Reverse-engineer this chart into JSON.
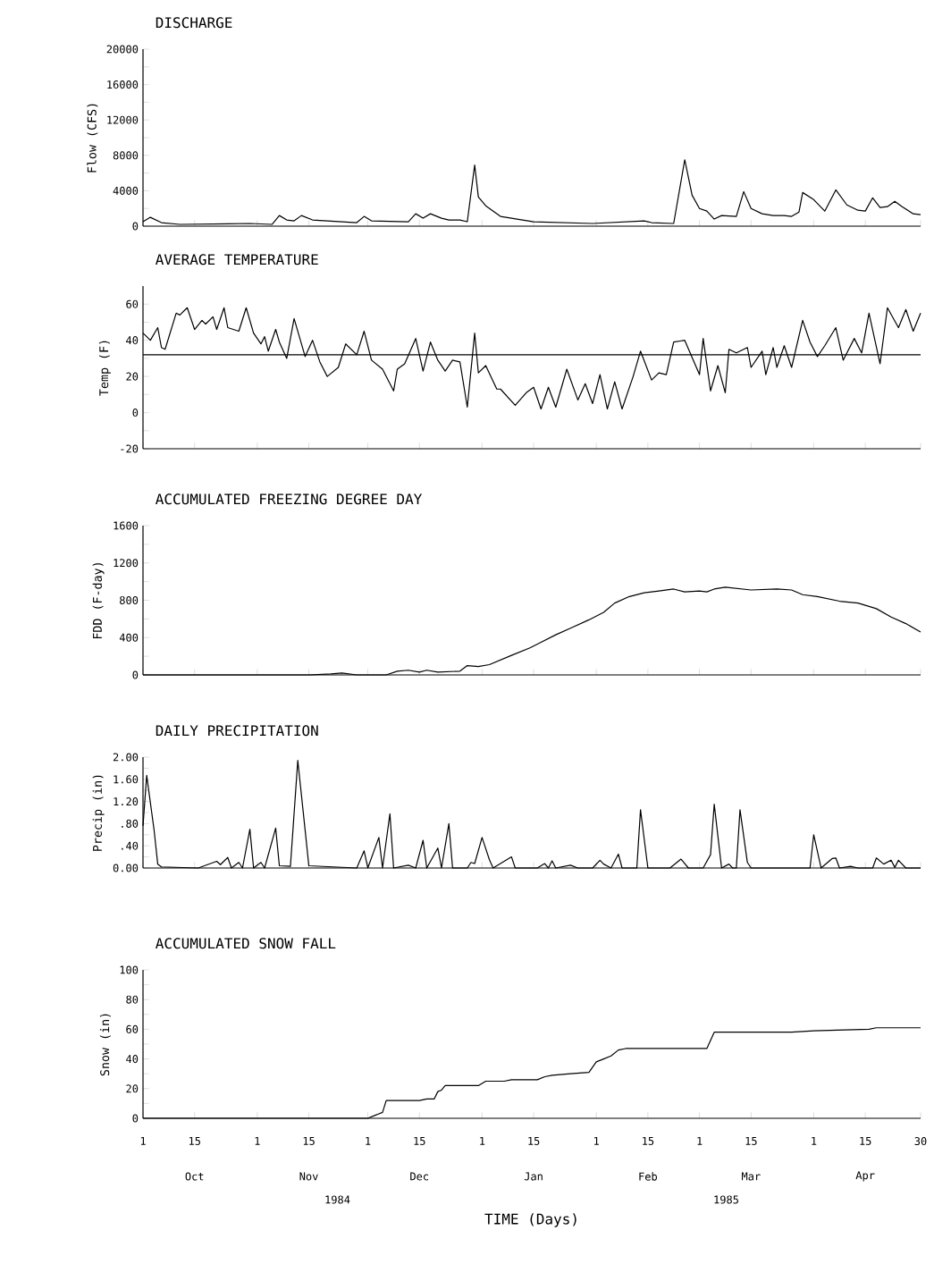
{
  "chart_data": [
    {
      "type": "line",
      "title": "DISCHARGE",
      "ylabel": "Flow (CFS)",
      "color": "#000000",
      "x": [
        "1984-10-01",
        "1984-10-03",
        "1984-10-06",
        "1984-10-11",
        "1984-10-30",
        "1984-11-05",
        "1984-11-07",
        "1984-11-09",
        "1984-11-11",
        "1984-11-13",
        "1984-11-16",
        "1984-11-28",
        "1984-11-30",
        "1984-12-02",
        "1984-12-12",
        "1984-12-14",
        "1984-12-16",
        "1984-12-18",
        "1984-12-21",
        "1984-12-23",
        "1984-12-26",
        "1984-12-28",
        "1984-12-30",
        "1984-12-31",
        "1985-01-02",
        "1985-01-06",
        "1985-01-15",
        "1985-01-31",
        "1985-02-14",
        "1985-02-16",
        "1985-02-22",
        "1985-02-25",
        "1985-02-27",
        "1985-03-01",
        "1985-03-03",
        "1985-03-05",
        "1985-03-07",
        "1985-03-11",
        "1985-03-13",
        "1985-03-15",
        "1985-03-18",
        "1985-03-21",
        "1985-03-24",
        "1985-03-26",
        "1985-03-28",
        "1985-03-29",
        "1985-04-01",
        "1985-04-04",
        "1985-04-07",
        "1985-04-10",
        "1985-04-13",
        "1985-04-15",
        "1985-04-17",
        "1985-04-19",
        "1985-04-21",
        "1985-04-23",
        "1985-04-25",
        "1985-04-28",
        "1985-04-30"
      ],
      "values": [
        500,
        1000,
        400,
        200,
        300,
        200,
        1200,
        700,
        600,
        1200,
        700,
        400,
        1100,
        600,
        500,
        1400,
        900,
        1400,
        900,
        700,
        700,
        500,
        6900,
        3300,
        2300,
        1100,
        500,
        300,
        600,
        400,
        300,
        7500,
        3500,
        2000,
        1700,
        800,
        1200,
        1100,
        3900,
        2000,
        1400,
        1200,
        1200,
        1100,
        1600,
        3800,
        3000,
        1700,
        4100,
        2400,
        1800,
        1700,
        3200,
        2100,
        2200,
        2800,
        2200,
        1400,
        1300
      ],
      "xlim": [
        "1984-10-01",
        "1985-04-30"
      ],
      "ylim": [
        0,
        20000
      ],
      "xticks": [
        {
          "value": "1984-10-01",
          "label": null
        },
        {
          "value": "1984-10-15",
          "label": null
        },
        {
          "value": "1984-11-01",
          "label": null
        },
        {
          "value": "1984-11-15",
          "label": null
        },
        {
          "value": "1984-12-01",
          "label": null
        },
        {
          "value": "1984-12-15",
          "label": null
        },
        {
          "value": "1985-01-01",
          "label": null
        },
        {
          "value": "1985-01-15",
          "label": null
        },
        {
          "value": "1985-02-01",
          "label": null
        },
        {
          "value": "1985-02-15",
          "label": null
        },
        {
          "value": "1985-03-01",
          "label": null
        },
        {
          "value": "1985-03-15",
          "label": null
        },
        {
          "value": "1985-04-01",
          "label": null
        },
        {
          "value": "1985-04-15",
          "label": null
        },
        {
          "value": "1985-04-30",
          "label": null
        }
      ],
      "yticks": [
        0,
        {
          "value": 2000,
          "label": null
        },
        4000,
        {
          "value": 6000,
          "label": null
        },
        8000,
        {
          "value": 10000,
          "label": null
        },
        12000,
        {
          "value": 14000,
          "label": null
        },
        16000,
        {
          "value": 18000,
          "label": null
        },
        20000
      ],
      "tick_labels": "y"
    },
    {
      "type": "line",
      "title": "AVERAGE TEMPERATURE",
      "ylabel": "Temp (F)",
      "color": "#000000",
      "x": [
        "1984-10-01",
        "1984-10-03",
        "1984-10-05",
        "1984-10-06",
        "1984-10-07",
        "1984-10-10",
        "1984-10-11",
        "1984-10-13",
        "1984-10-15",
        "1984-10-17",
        "1984-10-18",
        "1984-10-20",
        "1984-10-21",
        "1984-10-23",
        "1984-10-24",
        "1984-10-27",
        "1984-10-29",
        "1984-10-31",
        "1984-11-02",
        "1984-11-03",
        "1984-11-04",
        "1984-11-06",
        "1984-11-07",
        "1984-11-09",
        "1984-11-11",
        "1984-11-14",
        "1984-11-16",
        "1984-11-18",
        "1984-11-20",
        "1984-11-23",
        "1984-11-25",
        "1984-11-28",
        "1984-11-30",
        "1984-12-02",
        "1984-12-05",
        "1984-12-08",
        "1984-12-09",
        "1984-12-11",
        "1984-12-14",
        "1984-12-16",
        "1984-12-18",
        "1984-12-20",
        "1984-12-22",
        "1984-12-24",
        "1984-12-26",
        "1984-12-28",
        "1984-12-30",
        "1984-12-31",
        "1985-01-02",
        "1985-01-05",
        "1985-01-06",
        "1985-01-10",
        "1985-01-13",
        "1985-01-15",
        "1985-01-17",
        "1985-01-19",
        "1985-01-21",
        "1985-01-24",
        "1985-01-27",
        "1985-01-29",
        "1985-01-31",
        "1985-02-02",
        "1985-02-04",
        "1985-02-06",
        "1985-02-08",
        "1985-02-11",
        "1985-02-13",
        "1985-02-16",
        "1985-02-18",
        "1985-02-20",
        "1985-02-22",
        "1985-02-25",
        "1985-03-01",
        "1985-03-02",
        "1985-03-04",
        "1985-03-06",
        "1985-03-08",
        "1985-03-09",
        "1985-03-11",
        "1985-03-14",
        "1985-03-15",
        "1985-03-18",
        "1985-03-19",
        "1985-03-21",
        "1985-03-22",
        "1985-03-24",
        "1985-03-26",
        "1985-03-29",
        "1985-03-31",
        "1985-04-02",
        "1985-04-04",
        "1985-04-07",
        "1985-04-09",
        "1985-04-12",
        "1985-04-14",
        "1985-04-16",
        "1985-04-19",
        "1985-04-21",
        "1985-04-24",
        "1985-04-26",
        "1985-04-28",
        "1985-04-30"
      ],
      "values": [
        44,
        40,
        47,
        36,
        35,
        55,
        54,
        58,
        46,
        51,
        49,
        53,
        46,
        58,
        47,
        45,
        58,
        44,
        38,
        42,
        34,
        46,
        39,
        30,
        52,
        31,
        40,
        28,
        20,
        25,
        38,
        32,
        45,
        29,
        24,
        12,
        24,
        27,
        41,
        23,
        39,
        29,
        23,
        29,
        28,
        3,
        44,
        22,
        26,
        13,
        13,
        4,
        11,
        14,
        2,
        14,
        3,
        24,
        7,
        16,
        5,
        21,
        2,
        17,
        2,
        20,
        34,
        18,
        22,
        21,
        39,
        40,
        21,
        41,
        12,
        26,
        11,
        35,
        33,
        36,
        25,
        34,
        21,
        36,
        25,
        37,
        25,
        51,
        39,
        31,
        37,
        47,
        29,
        41,
        33,
        55,
        27,
        58,
        47,
        57,
        45,
        55
      ],
      "xlim": [
        "1984-10-01",
        "1985-04-30"
      ],
      "ylim": [
        -20,
        70
      ],
      "xticks": [
        {
          "value": "1984-10-01",
          "label": null
        },
        {
          "value": "1984-10-15",
          "label": null
        },
        {
          "value": "1984-11-01",
          "label": null
        },
        {
          "value": "1984-11-15",
          "label": null
        },
        {
          "value": "1984-12-01",
          "label": null
        },
        {
          "value": "1984-12-15",
          "label": null
        },
        {
          "value": "1985-01-01",
          "label": null
        },
        {
          "value": "1985-01-15",
          "label": null
        },
        {
          "value": "1985-02-01",
          "label": null
        },
        {
          "value": "1985-02-15",
          "label": null
        },
        {
          "value": "1985-03-01",
          "label": null
        },
        {
          "value": "1985-03-15",
          "label": null
        },
        {
          "value": "1985-04-01",
          "label": null
        },
        {
          "value": "1985-04-15",
          "label": null
        },
        {
          "value": "1985-04-30",
          "label": null
        }
      ],
      "yticks": [
        -20,
        {
          "value": -10,
          "label": null
        },
        0,
        {
          "value": 10,
          "label": null
        },
        20,
        {
          "value": 30,
          "label": null
        },
        40,
        {
          "value": 50,
          "label": null
        },
        60
      ],
      "ref_lines": [
        {
          "axis": "y",
          "value": 32
        }
      ],
      "tick_labels": "y"
    },
    {
      "type": "line",
      "title": "ACCUMULATED FREEZING DEGREE DAY",
      "ylabel": "FDD (F-day)",
      "color": "#000000",
      "x": [
        "1984-10-01",
        "1984-11-15",
        "1984-11-21",
        "1984-11-24",
        "1984-11-28",
        "1984-12-06",
        "1984-12-09",
        "1984-12-12",
        "1984-12-15",
        "1984-12-17",
        "1984-12-20",
        "1984-12-26",
        "1984-12-28",
        "1984-12-31",
        "1985-01-03",
        "1985-01-09",
        "1985-01-14",
        "1985-01-17",
        "1985-01-21",
        "1985-01-25",
        "1985-01-30",
        "1985-02-03",
        "1985-02-06",
        "1985-02-10",
        "1985-02-14",
        "1985-02-18",
        "1985-02-22",
        "1985-02-25",
        "1985-03-01",
        "1985-03-03",
        "1985-03-05",
        "1985-03-08",
        "1985-03-15",
        "1985-03-22",
        "1985-03-26",
        "1985-03-29",
        "1985-04-02",
        "1985-04-08",
        "1985-04-13",
        "1985-04-18",
        "1985-04-22",
        "1985-04-26",
        "1985-04-30"
      ],
      "values": [
        0,
        0,
        10,
        20,
        0,
        0,
        40,
        50,
        30,
        50,
        30,
        40,
        100,
        90,
        110,
        210,
        290,
        350,
        430,
        500,
        590,
        670,
        770,
        840,
        880,
        900,
        920,
        890,
        900,
        890,
        920,
        940,
        910,
        920,
        910,
        860,
        840,
        790,
        770,
        710,
        620,
        550,
        460
      ],
      "xlim": [
        "1984-10-01",
        "1985-04-30"
      ],
      "ylim": [
        0,
        1600
      ],
      "xticks": [
        {
          "value": "1984-10-01",
          "label": null
        },
        {
          "value": "1984-10-15",
          "label": null
        },
        {
          "value": "1984-11-01",
          "label": null
        },
        {
          "value": "1984-11-15",
          "label": null
        },
        {
          "value": "1984-12-01",
          "label": null
        },
        {
          "value": "1984-12-15",
          "label": null
        },
        {
          "value": "1985-01-01",
          "label": null
        },
        {
          "value": "1985-01-15",
          "label": null
        },
        {
          "value": "1985-02-01",
          "label": null
        },
        {
          "value": "1985-02-15",
          "label": null
        },
        {
          "value": "1985-03-01",
          "label": null
        },
        {
          "value": "1985-03-15",
          "label": null
        },
        {
          "value": "1985-04-01",
          "label": null
        },
        {
          "value": "1985-04-15",
          "label": null
        },
        {
          "value": "1985-04-30",
          "label": null
        }
      ],
      "yticks": [
        0,
        {
          "value": 200,
          "label": null
        },
        400,
        {
          "value": 600,
          "label": null
        },
        800,
        {
          "value": 1000,
          "label": null
        },
        1200,
        {
          "value": 1400,
          "label": null
        },
        1600
      ],
      "tick_labels": "y"
    },
    {
      "type": "line",
      "title": "DAILY PRECIPITATION",
      "ylabel": "Precip (in)",
      "color": "#000000",
      "x": [
        "1984-10-01",
        "1984-10-02",
        "1984-10-04",
        "1984-10-05",
        "1984-10-06",
        "1984-10-16",
        "1984-10-21",
        "1984-10-22",
        "1984-10-24",
        "1984-10-25",
        "1984-10-27",
        "1984-10-28",
        "1984-10-30",
        "1984-10-31",
        "1984-11-02",
        "1984-11-03",
        "1984-11-06",
        "1984-11-07",
        "1984-11-10",
        "1984-11-12",
        "1984-11-14",
        "1984-11-15",
        "1984-11-28",
        "1984-11-30",
        "1984-12-01",
        "1984-12-04",
        "1984-12-05",
        "1984-12-07",
        "1984-12-08",
        "1984-12-12",
        "1984-12-14",
        "1984-12-16",
        "1984-12-17",
        "1984-12-20",
        "1984-12-21",
        "1984-12-23",
        "1984-12-24",
        "1984-12-28",
        "1984-12-29",
        "1984-12-30",
        "1985-01-01",
        "1985-01-03",
        "1985-01-04",
        "1985-01-09",
        "1985-01-10",
        "1985-01-16",
        "1985-01-18",
        "1985-01-19",
        "1985-01-20",
        "1985-01-21",
        "1985-01-25",
        "1985-01-27",
        "1985-01-31",
        "1985-02-02",
        "1985-02-03",
        "1985-02-05",
        "1985-02-07",
        "1985-02-08",
        "1985-02-12",
        "1985-02-13",
        "1985-02-15",
        "1985-02-21",
        "1985-02-24",
        "1985-02-26",
        "1985-03-02",
        "1985-03-04",
        "1985-03-05",
        "1985-03-07",
        "1985-03-09",
        "1985-03-10",
        "1985-03-11",
        "1985-03-12",
        "1985-03-14",
        "1985-03-15",
        "1985-03-31",
        "1985-04-01",
        "1985-04-03",
        "1985-04-06",
        "1985-04-07",
        "1985-04-08",
        "1985-04-11",
        "1985-04-13",
        "1985-04-17",
        "1985-04-18",
        "1985-04-20",
        "1985-04-22",
        "1985-04-23",
        "1985-04-24",
        "1985-04-26",
        "1985-04-30"
      ],
      "values": [
        0.76,
        1.67,
        0.69,
        0.07,
        0.02,
        0,
        0.12,
        0.06,
        0.19,
        0,
        0.1,
        0,
        0.7,
        0,
        0.1,
        0,
        0.72,
        0.04,
        0.03,
        1.94,
        0.68,
        0.04,
        0,
        0.31,
        0,
        0.55,
        0,
        0.98,
        0,
        0.05,
        0,
        0.5,
        0,
        0.36,
        0,
        0.8,
        0,
        0,
        0.1,
        0.08,
        0.55,
        0.15,
        0,
        0.2,
        0,
        0,
        0.08,
        0,
        0.13,
        0,
        0.05,
        0,
        0,
        0.14,
        0.07,
        0,
        0.25,
        0,
        0,
        1.05,
        0,
        0,
        0.16,
        0,
        0,
        0.24,
        1.15,
        0,
        0.07,
        0,
        0,
        1.05,
        0.1,
        0,
        0,
        0.6,
        0,
        0.17,
        0.18,
        0,
        0.03,
        0,
        0,
        0.18,
        0.07,
        0.14,
        0.01,
        0.14,
        0,
        0
      ],
      "xlim": [
        "1984-10-01",
        "1985-04-30"
      ],
      "ylim": [
        0,
        2
      ],
      "xticks": [
        {
          "value": "1984-10-01",
          "label": null
        },
        {
          "value": "1984-10-15",
          "label": null
        },
        {
          "value": "1984-11-01",
          "label": null
        },
        {
          "value": "1984-11-15",
          "label": null
        },
        {
          "value": "1984-12-01",
          "label": null
        },
        {
          "value": "1984-12-15",
          "label": null
        },
        {
          "value": "1985-01-01",
          "label": null
        },
        {
          "value": "1985-01-15",
          "label": null
        },
        {
          "value": "1985-02-01",
          "label": null
        },
        {
          "value": "1985-02-15",
          "label": null
        },
        {
          "value": "1985-03-01",
          "label": null
        },
        {
          "value": "1985-03-15",
          "label": null
        },
        {
          "value": "1985-04-01",
          "label": null
        },
        {
          "value": "1985-04-15",
          "label": null
        },
        {
          "value": "1985-04-30",
          "label": null
        }
      ],
      "yticks": [
        {
          "value": 0,
          "label": "0.00"
        },
        {
          "value": 0.2,
          "label": null
        },
        {
          "value": 0.4,
          "label": ".40"
        },
        {
          "value": 0.6,
          "label": null
        },
        {
          "value": 0.8,
          "label": ".80"
        },
        {
          "value": 1.0,
          "label": null
        },
        {
          "value": 1.2,
          "label": "1.20"
        },
        {
          "value": 1.4,
          "label": null
        },
        {
          "value": 1.6,
          "label": "1.60"
        },
        {
          "value": 1.8,
          "label": null
        },
        {
          "value": 2,
          "label": "2.00"
        }
      ],
      "tick_labels": "y"
    },
    {
      "type": "line",
      "title": "ACCUMULATED SNOW FALL",
      "ylabel": "Snow (in)",
      "xlabel": "TIME (Days)",
      "color": "#000000",
      "x": [
        "1984-10-01",
        "1984-12-01",
        "1984-12-03",
        "1984-12-04",
        "1984-12-05",
        "1984-12-06",
        "1984-12-15",
        "1984-12-17",
        "1984-12-19",
        "1984-12-20",
        "1984-12-21",
        "1984-12-22",
        "1984-12-31",
        "1985-01-02",
        "1985-01-07",
        "1985-01-09",
        "1985-01-16",
        "1985-01-18",
        "1985-01-20",
        "1985-01-25",
        "1985-01-30",
        "1985-02-01",
        "1985-02-03",
        "1985-02-05",
        "1985-02-07",
        "1985-02-09",
        "1985-02-12",
        "1985-03-03",
        "1985-03-05",
        "1985-03-26",
        "1985-04-01",
        "1985-04-16",
        "1985-04-18",
        "1985-04-30"
      ],
      "values": [
        0,
        0,
        2,
        3,
        4,
        12,
        12,
        13,
        13,
        18,
        19,
        22,
        22,
        25,
        25,
        26,
        26,
        28,
        29,
        30,
        31,
        38,
        40,
        42,
        46,
        47,
        47,
        47,
        58,
        58,
        59,
        60,
        61,
        61
      ],
      "xlim": [
        "1984-10-01",
        "1985-04-30"
      ],
      "ylim": [
        0,
        100
      ],
      "xticks": [
        {
          "value": "1984-10-01",
          "label": "1"
        },
        {
          "value": "1984-10-15",
          "label": "15"
        },
        {
          "value": "1984-11-01",
          "label": "1"
        },
        {
          "value": "1984-11-15",
          "label": "15"
        },
        {
          "value": "1984-12-01",
          "label": "1"
        },
        {
          "value": "1984-12-15",
          "label": "15"
        },
        {
          "value": "1985-01-01",
          "label": "1"
        },
        {
          "value": "1985-01-15",
          "label": "15"
        },
        {
          "value": "1985-02-01",
          "label": "1"
        },
        {
          "value": "1985-02-15",
          "label": "15"
        },
        {
          "value": "1985-03-01",
          "label": "1"
        },
        {
          "value": "1985-03-15",
          "label": "15"
        },
        {
          "value": "1985-04-01",
          "label": "1"
        },
        {
          "value": "1985-04-15",
          "label": "15"
        },
        {
          "value": "1985-04-30",
          "label": "30"
        }
      ],
      "yticks": [
        0,
        {
          "value": 10,
          "label": null
        },
        20,
        {
          "value": 30,
          "label": null
        },
        40,
        {
          "value": 50,
          "label": null
        },
        60,
        {
          "value": 70,
          "label": null
        },
        80,
        {
          "value": 90,
          "label": null
        },
        100
      ],
      "annotations": [
        "Oct",
        "Nov",
        "Dec",
        "Jan",
        "Feb",
        "Mar",
        "Apr",
        "1984",
        "1985"
      ]
    }
  ]
}
